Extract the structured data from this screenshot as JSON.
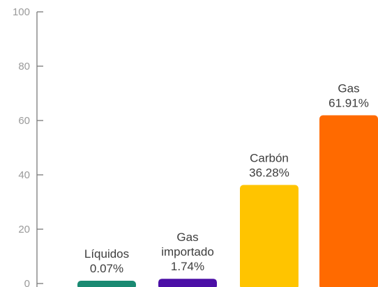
{
  "chart_data": {
    "type": "bar",
    "title": "",
    "xlabel": "",
    "ylabel": "",
    "ylim": [
      0,
      100
    ],
    "yticks": [
      0,
      20,
      40,
      60,
      80,
      100
    ],
    "grid": false,
    "categories": [
      {
        "label_lines": [
          "Líquidos"
        ],
        "value_label": "0.07%",
        "value": 0.07,
        "color": "#1a8a72"
      },
      {
        "label_lines": [
          "Gas",
          "importado"
        ],
        "value_label": "1.74%",
        "value": 1.74,
        "color": "#4b0fa6"
      },
      {
        "label_lines": [
          "Carbón"
        ],
        "value_label": "36.28%",
        "value": 36.28,
        "color": "#ffc400"
      },
      {
        "label_lines": [
          "Gas"
        ],
        "value_label": "61.91%",
        "value": 61.91,
        "color": "#ff6a00"
      }
    ]
  }
}
